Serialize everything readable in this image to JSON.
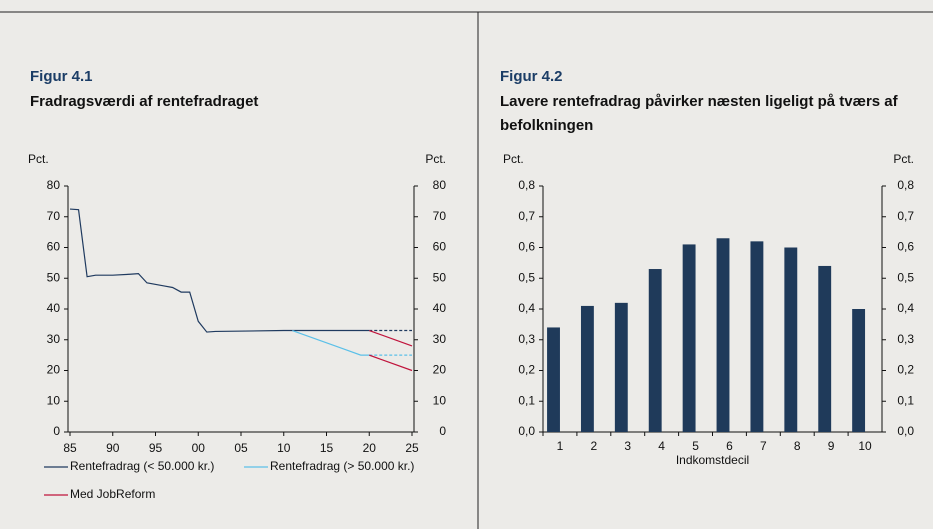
{
  "chart_data": [
    {
      "type": "line",
      "figure_label": "Figur 4.1",
      "title": "Fradragsværdi af rentefradraget",
      "y_label": "Pct.",
      "y2_label": "Pct.",
      "xlim": [
        1985,
        2025
      ],
      "xticks": [
        {
          "value": 1985,
          "label": "85"
        },
        {
          "value": 1990,
          "label": "90"
        },
        {
          "value": 1995,
          "label": "95"
        },
        {
          "value": 2000,
          "label": "00"
        },
        {
          "value": 2005,
          "label": "05"
        },
        {
          "value": 2010,
          "label": "10"
        },
        {
          "value": 2015,
          "label": "15"
        },
        {
          "value": 2020,
          "label": "20"
        },
        {
          "value": 2025,
          "label": "25"
        }
      ],
      "ylim": [
        0,
        80
      ],
      "yticks": [
        0,
        10,
        20,
        30,
        40,
        50,
        60,
        70,
        80
      ],
      "y2lim": [
        0,
        80
      ],
      "y2ticks": [
        0,
        10,
        20,
        30,
        40,
        50,
        60,
        70,
        80
      ],
      "series": [
        {
          "name": "Rentefradrag (< 50.000 kr.)",
          "color": "#1f3a5f",
          "x": [
            1985,
            1986,
            1987,
            1988,
            1990,
            1992,
            1993,
            1994,
            1996,
            1997,
            1998,
            1999,
            2000,
            2001,
            2002,
            2010,
            2020
          ],
          "values": [
            72.5,
            72.3,
            50.5,
            51,
            51,
            51.3,
            51.5,
            48.5,
            47.5,
            47,
            45.5,
            45.5,
            36,
            32.5,
            32.7,
            33,
            33
          ]
        },
        {
          "name": "Rentefradrag (> 50.000 kr.)",
          "color": "#5bc0e8",
          "x": [
            2011,
            2013,
            2015,
            2017,
            2019,
            2020
          ],
          "values": [
            33,
            31,
            29,
            27,
            25,
            25
          ]
        },
        {
          "color": "#1f3a5f",
          "dashed": true,
          "x": [
            2020,
            2025
          ],
          "values": [
            33,
            33
          ]
        },
        {
          "color": "#5bc0e8",
          "dashed": true,
          "x": [
            2020,
            2025
          ],
          "values": [
            25,
            25
          ]
        },
        {
          "name": "Med JobReform",
          "color": "#c0143c",
          "x": [
            2020,
            2025
          ],
          "values": [
            33,
            28
          ]
        },
        {
          "color": "#c0143c",
          "x": [
            2020,
            2025
          ],
          "values": [
            25,
            20
          ]
        }
      ]
    },
    {
      "type": "bar",
      "figure_label": "Figur 4.2",
      "title": "Lavere rentefradrag påvirker næsten ligeligt på tværs af befolkningen",
      "y_label": "Pct.",
      "y2_label": "Pct.",
      "x_label": "Indkomstdecil",
      "categories": [
        "1",
        "2",
        "3",
        "4",
        "5",
        "6",
        "7",
        "8",
        "9",
        "10"
      ],
      "values": [
        0.34,
        0.41,
        0.42,
        0.53,
        0.61,
        0.63,
        0.62,
        0.6,
        0.54,
        0.4
      ],
      "color": "#1f3a5a",
      "ylim": [
        0,
        0.8
      ],
      "yticks": [
        {
          "value": 0,
          "label": "0,0"
        },
        {
          "value": 0.1,
          "label": "0,1"
        },
        {
          "value": 0.2,
          "label": "0,2"
        },
        {
          "value": 0.3,
          "label": "0,3"
        },
        {
          "value": 0.4,
          "label": "0,4"
        },
        {
          "value": 0.5,
          "label": "0,5"
        },
        {
          "value": 0.6,
          "label": "0,6"
        },
        {
          "value": 0.7,
          "label": "0,7"
        },
        {
          "value": 0.8,
          "label": "0,8"
        }
      ],
      "y2lim": [
        0,
        0.8
      ],
      "y2ticks": [
        {
          "value": 0,
          "label": "0,0"
        },
        {
          "value": 0.1,
          "label": "0,1"
        },
        {
          "value": 0.2,
          "label": "0,2"
        },
        {
          "value": 0.3,
          "label": "0,3"
        },
        {
          "value": 0.4,
          "label": "0,4"
        },
        {
          "value": 0.5,
          "label": "0,5"
        },
        {
          "value": 0.6,
          "label": "0,6"
        },
        {
          "value": 0.7,
          "label": "0,7"
        },
        {
          "value": 0.8,
          "label": "0,8"
        }
      ]
    }
  ]
}
